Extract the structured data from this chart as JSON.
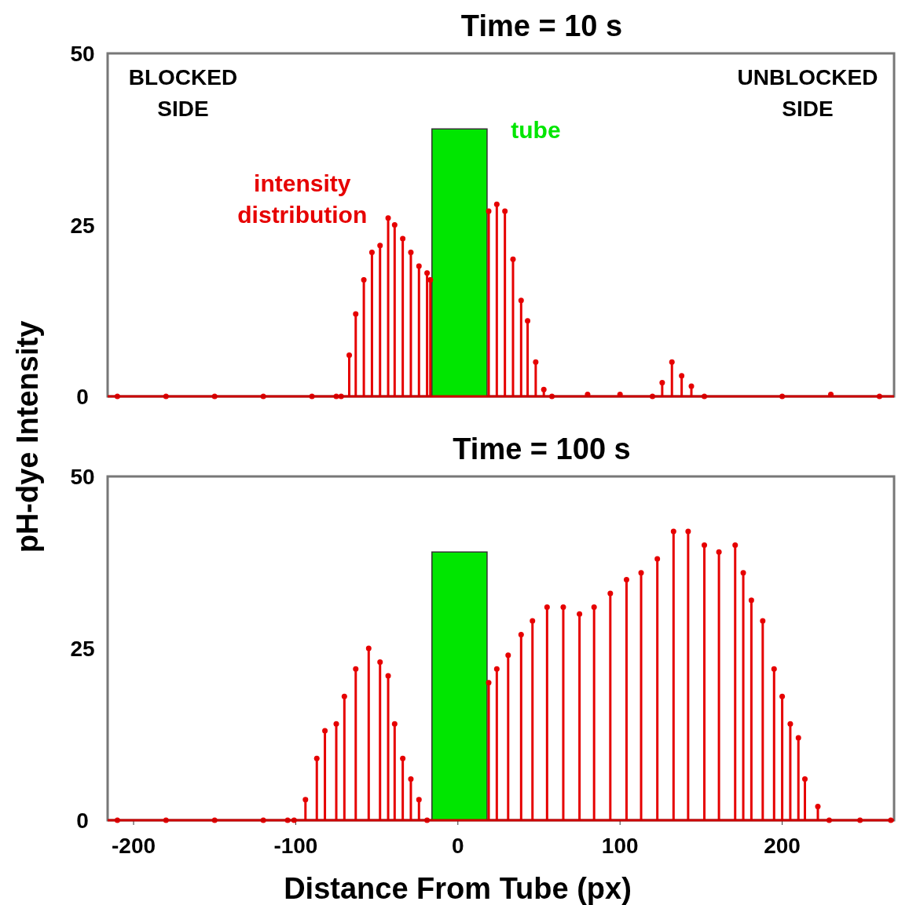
{
  "chart_data": [
    {
      "type": "lollipop",
      "title": "Time = 10 s",
      "ylabel": "pH-dye Intensity",
      "xlim": [
        -216,
        269
      ],
      "ylim": [
        0,
        50
      ],
      "yticks": [
        0,
        25,
        50
      ],
      "tick_labels": "y",
      "marker": "circle",
      "annotations": [
        "BLOCKED SIDE",
        "UNBLOCKED SIDE"
      ],
      "series": [
        {
          "name": "tube",
          "type": "area",
          "marker": "none",
          "color": "#00e600",
          "x": [
            -16,
            18
          ],
          "values": [
            39,
            39
          ]
        },
        {
          "name": "intensity distribution",
          "color": "#e60000",
          "x": [
            -210,
            -180,
            -150,
            -120,
            -90,
            -75,
            -72,
            -67,
            -63,
            -58,
            -53,
            -48,
            -43,
            -39,
            -34,
            -29,
            -24,
            -19,
            -17,
            19,
            24,
            29,
            34,
            39,
            43,
            48,
            53,
            58,
            80,
            100,
            120,
            126,
            132,
            138,
            144,
            152,
            200,
            230,
            260
          ],
          "values": [
            0,
            0,
            0,
            0,
            0,
            0,
            0,
            6,
            12,
            17,
            21,
            22,
            26,
            25,
            23,
            21,
            19,
            18,
            17,
            27,
            28,
            27,
            20,
            14,
            11,
            5,
            1,
            0,
            0.3,
            0.3,
            0,
            2,
            5,
            3,
            1.5,
            0,
            0,
            0.3,
            0
          ]
        }
      ]
    },
    {
      "type": "lollipop",
      "title": "Time = 100 s",
      "xlabel": "Distance From Tube (px)",
      "xlim": [
        -216,
        269
      ],
      "ylim": [
        0,
        50
      ],
      "yticks": [
        0,
        25,
        50
      ],
      "xticks": [
        -200,
        -100,
        0,
        100,
        200
      ],
      "marker": "circle",
      "series": [
        {
          "type": "area",
          "marker": "none",
          "color": "#00e600",
          "x": [
            -16,
            18
          ],
          "values": [
            39,
            39
          ]
        },
        {
          "color": "#e60000",
          "x": [
            -210,
            -180,
            -150,
            -120,
            -105,
            -101,
            -94,
            -87,
            -82,
            -75,
            -70,
            -63,
            -55,
            -48,
            -43,
            -39,
            -34,
            -29,
            -24,
            -19,
            19,
            24,
            31,
            39,
            46,
            55,
            65,
            75,
            84,
            94,
            104,
            113,
            123,
            133,
            142,
            152,
            161,
            171,
            176,
            181,
            188,
            195,
            200,
            205,
            210,
            214,
            222,
            229,
            248,
            267
          ],
          "values": [
            0,
            0,
            0,
            0,
            0,
            0,
            3,
            9,
            13,
            14,
            18,
            22,
            25,
            23,
            21,
            14,
            9,
            6,
            3,
            0,
            20,
            22,
            24,
            27,
            29,
            31,
            31,
            30,
            31,
            33,
            35,
            36,
            38,
            42,
            42,
            40,
            39,
            40,
            36,
            32,
            29,
            22,
            18,
            14,
            12,
            6,
            2,
            0,
            0,
            0
          ]
        }
      ]
    }
  ]
}
